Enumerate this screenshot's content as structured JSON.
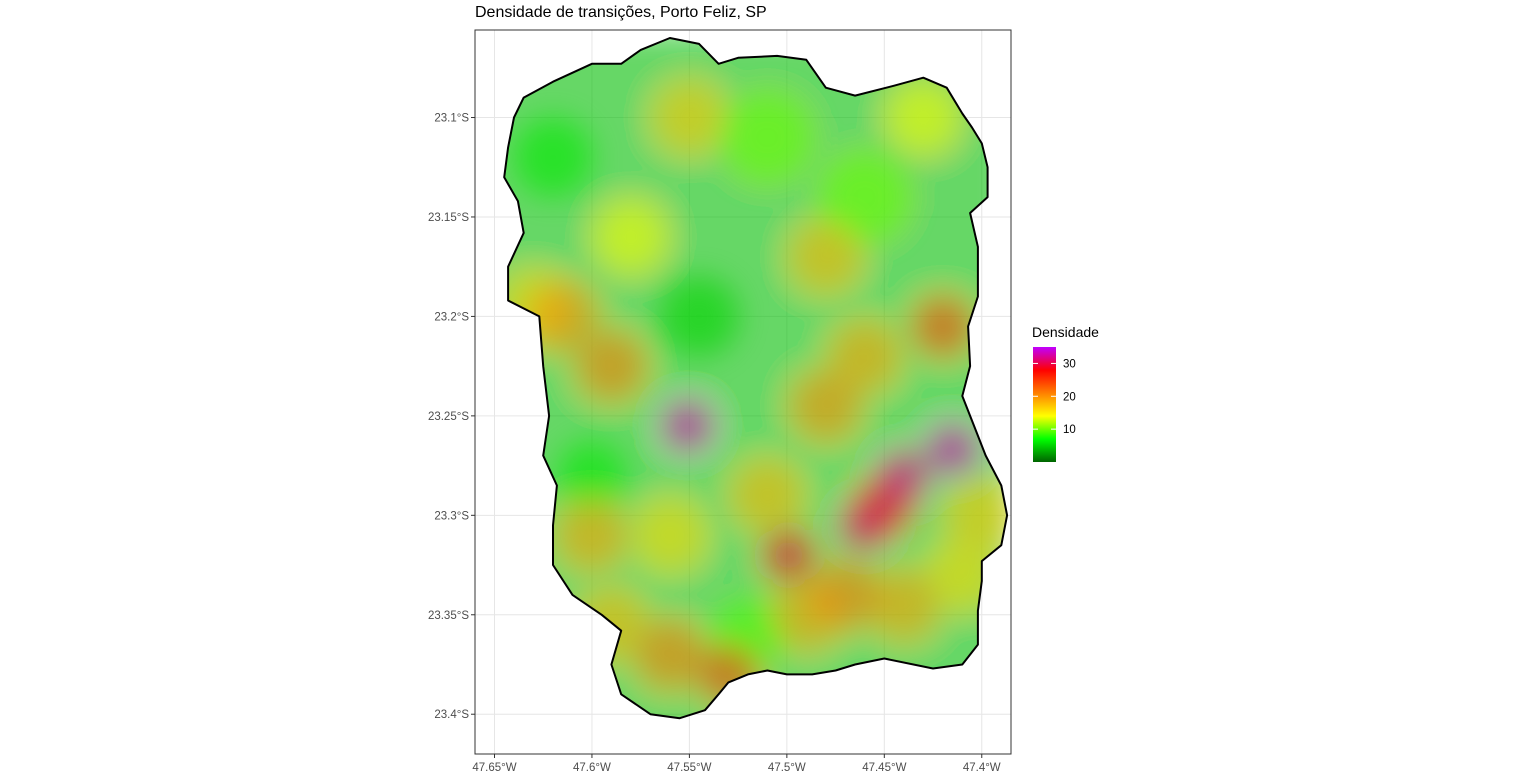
{
  "title": "Densidade de transições, Porto Feliz, SP",
  "map": {
    "x_ticks": [
      {
        "value": -47.65,
        "label": "47.65°W"
      },
      {
        "value": -47.6,
        "label": "47.6°W"
      },
      {
        "value": -47.55,
        "label": "47.55°W"
      },
      {
        "value": -47.5,
        "label": "47.5°W"
      },
      {
        "value": -47.45,
        "label": "47.45°W"
      },
      {
        "value": -47.4,
        "label": "47.4°W"
      }
    ],
    "y_ticks": [
      {
        "value": -23.1,
        "label": "23.1°S"
      },
      {
        "value": -23.15,
        "label": "23.15°S"
      },
      {
        "value": -23.2,
        "label": "23.2°S"
      },
      {
        "value": -23.25,
        "label": "23.25°S"
      },
      {
        "value": -23.3,
        "label": "23.3°S"
      },
      {
        "value": -23.35,
        "label": "23.35°S"
      },
      {
        "value": -23.4,
        "label": "23.4°S"
      }
    ],
    "xlim": [
      -47.66,
      -47.385
    ],
    "ylim": [
      -23.42,
      -23.056
    ],
    "boundary": [
      [
        -47.635,
        -23.09
      ],
      [
        -47.62,
        -23.082
      ],
      [
        -47.6,
        -23.073
      ],
      [
        -47.585,
        -23.073
      ],
      [
        -47.575,
        -23.066
      ],
      [
        -47.56,
        -23.06
      ],
      [
        -47.545,
        -23.063
      ],
      [
        -47.535,
        -23.073
      ],
      [
        -47.525,
        -23.07
      ],
      [
        -47.505,
        -23.069
      ],
      [
        -47.49,
        -23.071
      ],
      [
        -47.48,
        -23.085
      ],
      [
        -47.465,
        -23.089
      ],
      [
        -47.445,
        -23.084
      ],
      [
        -47.43,
        -23.08
      ],
      [
        -47.418,
        -23.085
      ],
      [
        -47.41,
        -23.098
      ],
      [
        -47.405,
        -23.105
      ],
      [
        -47.4,
        -23.113
      ],
      [
        -47.397,
        -23.125
      ],
      [
        -47.397,
        -23.14
      ],
      [
        -47.406,
        -23.148
      ],
      [
        -47.402,
        -23.165
      ],
      [
        -47.402,
        -23.19
      ],
      [
        -47.407,
        -23.205
      ],
      [
        -47.406,
        -23.225
      ],
      [
        -47.41,
        -23.24
      ],
      [
        -47.404,
        -23.255
      ],
      [
        -47.398,
        -23.27
      ],
      [
        -47.39,
        -23.285
      ],
      [
        -47.387,
        -23.3
      ],
      [
        -47.39,
        -23.315
      ],
      [
        -47.4,
        -23.323
      ],
      [
        -47.4,
        -23.333
      ],
      [
        -47.402,
        -23.348
      ],
      [
        -47.402,
        -23.365
      ],
      [
        -47.41,
        -23.375
      ],
      [
        -47.425,
        -23.377
      ],
      [
        -47.45,
        -23.372
      ],
      [
        -47.465,
        -23.375
      ],
      [
        -47.475,
        -23.378
      ],
      [
        -47.487,
        -23.38
      ],
      [
        -47.5,
        -23.38
      ],
      [
        -47.51,
        -23.378
      ],
      [
        -47.52,
        -23.38
      ],
      [
        -47.53,
        -23.384
      ],
      [
        -47.535,
        -23.39
      ],
      [
        -47.542,
        -23.398
      ],
      [
        -47.555,
        -23.402
      ],
      [
        -47.57,
        -23.4
      ],
      [
        -47.585,
        -23.39
      ],
      [
        -47.59,
        -23.375
      ],
      [
        -47.585,
        -23.358
      ],
      [
        -47.595,
        -23.35
      ],
      [
        -47.61,
        -23.34
      ],
      [
        -47.62,
        -23.325
      ],
      [
        -47.62,
        -23.305
      ],
      [
        -47.618,
        -23.285
      ],
      [
        -47.625,
        -23.27
      ],
      [
        -47.622,
        -23.25
      ],
      [
        -47.625,
        -23.225
      ],
      [
        -47.627,
        -23.2
      ],
      [
        -47.643,
        -23.192
      ],
      [
        -47.643,
        -23.175
      ],
      [
        -47.635,
        -23.158
      ],
      [
        -47.638,
        -23.142
      ],
      [
        -47.645,
        -23.13
      ],
      [
        -47.643,
        -23.115
      ],
      [
        -47.64,
        -23.1
      ]
    ],
    "density_hotspots": [
      {
        "lon": -47.415,
        "lat": -23.267,
        "value": 33
      },
      {
        "lon": -47.44,
        "lat": -23.28,
        "value": 32
      },
      {
        "lon": -47.46,
        "lat": -23.305,
        "value": 31
      },
      {
        "lon": -47.45,
        "lat": -23.295,
        "value": 28
      },
      {
        "lon": -47.551,
        "lat": -23.255,
        "value": 33
      },
      {
        "lon": -47.499,
        "lat": -23.32,
        "value": 29
      },
      {
        "lon": -47.42,
        "lat": -23.205,
        "value": 24
      },
      {
        "lon": -47.53,
        "lat": -23.38,
        "value": 24
      },
      {
        "lon": -47.56,
        "lat": -23.37,
        "value": 21
      },
      {
        "lon": -47.59,
        "lat": -23.225,
        "value": 21
      },
      {
        "lon": -47.615,
        "lat": -23.2,
        "value": 20
      },
      {
        "lon": -47.48,
        "lat": -23.245,
        "value": 20
      },
      {
        "lon": -47.47,
        "lat": -23.34,
        "value": 21
      },
      {
        "lon": -47.49,
        "lat": -23.35,
        "value": 19
      },
      {
        "lon": -47.44,
        "lat": -23.345,
        "value": 19
      },
      {
        "lon": -47.46,
        "lat": -23.22,
        "value": 19
      },
      {
        "lon": -47.51,
        "lat": -23.29,
        "value": 18
      },
      {
        "lon": -47.6,
        "lat": -23.31,
        "value": 19
      },
      {
        "lon": -47.59,
        "lat": -23.355,
        "value": 18
      },
      {
        "lon": -47.48,
        "lat": -23.17,
        "value": 18
      },
      {
        "lon": -47.55,
        "lat": -23.1,
        "value": 17
      },
      {
        "lon": -47.56,
        "lat": -23.31,
        "value": 16
      },
      {
        "lon": -47.63,
        "lat": -23.195,
        "value": 16
      },
      {
        "lon": -47.58,
        "lat": -23.16,
        "value": 14
      },
      {
        "lon": -47.43,
        "lat": -23.1,
        "value": 14
      },
      {
        "lon": -47.4,
        "lat": -23.3,
        "value": 17
      },
      {
        "lon": -47.41,
        "lat": -23.33,
        "value": 16
      }
    ]
  },
  "legend": {
    "title": "Densidade",
    "labels": [
      {
        "value": 10,
        "label": "10"
      },
      {
        "value": 20,
        "label": "20"
      },
      {
        "value": 30,
        "label": "30"
      }
    ],
    "range": [
      0,
      35
    ],
    "colors": [
      "#006400",
      "#00ff00",
      "#ffff00",
      "#ff7f00",
      "#ff0000",
      "#c000ff"
    ]
  }
}
